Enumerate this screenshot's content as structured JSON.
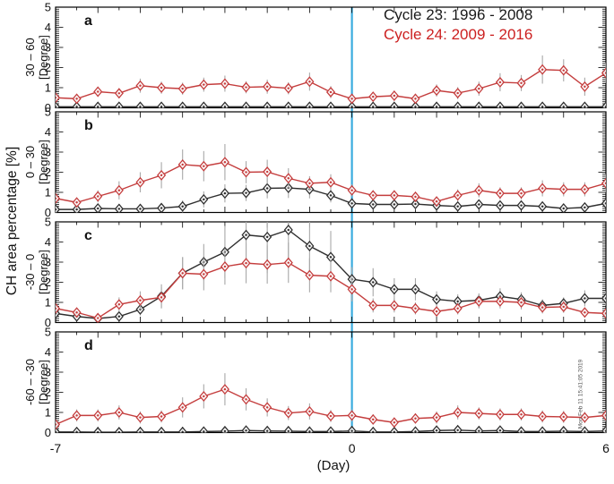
{
  "figure": {
    "legend": {
      "cycle23_label": "Cycle 23: 1996 - 2008",
      "cycle24_label": "Cycle 24: 2009 - 2016"
    },
    "xlabel": "(Day)",
    "ylabel": "CH area percentage [%]",
    "timestamp": "Mon Feb 11 15:41:05 2019",
    "colors": {
      "cycle23": "#2e2e2e",
      "cycle24": "#c43d3d",
      "cycle24_text": "#cc2020",
      "event_line": "#3aacdf",
      "error_bar": "#a8a8a8",
      "axis": "#000000"
    }
  },
  "chart_data": {
    "type": "line",
    "x": [
      -7,
      -6.5,
      -6,
      -5.5,
      -5,
      -4.5,
      -4,
      -3.5,
      -3,
      -2.5,
      -2,
      -1.5,
      -1,
      -0.5,
      0,
      0.5,
      1,
      1.5,
      2,
      2.5,
      3,
      3.5,
      4,
      4.5,
      5,
      5.5,
      6
    ],
    "xlim": [
      -7,
      6
    ],
    "ylim": [
      0,
      5
    ],
    "y_ticks": [
      0,
      1,
      2,
      3,
      4,
      5
    ],
    "x_tick_labels": [
      {
        "value": -7,
        "label": "-7"
      },
      {
        "value": 0,
        "label": "0"
      },
      {
        "value": 6,
        "label": "6"
      }
    ],
    "event_line_x": 0,
    "legend_position": "top-right-inside-panel-a",
    "grid": false,
    "panels": [
      {
        "id": "a",
        "letter": "a",
        "lat_label": "30 – 60",
        "unit_label": "[Degree]",
        "series": [
          {
            "name": "Cycle 23",
            "color_key": "cycle23",
            "values": [
              0.05,
              0.05,
              0.05,
              0.05,
              0.05,
              0.05,
              0.05,
              0.05,
              0.05,
              0.05,
              0.05,
              0.05,
              0.05,
              0.05,
              0.05,
              0.05,
              0.05,
              0.05,
              0.05,
              0.05,
              0.05,
              0.05,
              0.05,
              0.05,
              0.05,
              0.05,
              0.05
            ],
            "err": [
              0,
              0,
              0,
              0,
              0,
              0,
              0,
              0,
              0,
              0,
              0,
              0,
              0,
              0,
              0,
              0,
              0,
              0,
              0,
              0,
              0,
              0,
              0,
              0,
              0,
              0,
              0
            ]
          },
          {
            "name": "Cycle 24",
            "color_key": "cycle24",
            "values": [
              0.5,
              0.45,
              0.8,
              0.72,
              1.1,
              1.0,
              0.95,
              1.15,
              1.2,
              1.02,
              1.05,
              0.97,
              1.3,
              0.78,
              0.45,
              0.55,
              0.6,
              0.45,
              0.86,
              0.73,
              0.95,
              1.27,
              1.23,
              1.9,
              1.86,
              1.05,
              1.73
            ],
            "err": [
              0.25,
              0.2,
              0.25,
              0.25,
              0.35,
              0.3,
              0.3,
              0.35,
              0.4,
              0.3,
              0.35,
              0.3,
              0.45,
              0.3,
              0.2,
              0.2,
              0.25,
              0.2,
              0.3,
              0.3,
              0.35,
              0.45,
              0.4,
              0.7,
              0.55,
              0.45,
              0.5
            ]
          }
        ]
      },
      {
        "id": "b",
        "letter": "b",
        "lat_label": "0 – 30",
        "unit_label": "[Degree]",
        "series": [
          {
            "name": "Cycle 23",
            "color_key": "cycle23",
            "values": [
              0.15,
              0.15,
              0.2,
              0.18,
              0.18,
              0.22,
              0.3,
              0.65,
              0.95,
              0.97,
              1.2,
              1.22,
              1.15,
              0.85,
              0.45,
              0.4,
              0.4,
              0.42,
              0.35,
              0.3,
              0.4,
              0.35,
              0.35,
              0.3,
              0.2,
              0.25,
              0.45
            ],
            "err": [
              0.1,
              0.1,
              0.1,
              0.1,
              0.1,
              0.15,
              0.3,
              0.4,
              0.45,
              0.4,
              0.5,
              0.5,
              0.45,
              0.35,
              0.2,
              0.15,
              0.15,
              0.15,
              0.15,
              0.1,
              0.15,
              0.15,
              0.15,
              0.1,
              0.1,
              0.1,
              0.2
            ]
          },
          {
            "name": "Cycle 24",
            "color_key": "cycle24",
            "values": [
              0.7,
              0.5,
              0.8,
              1.1,
              1.5,
              1.85,
              2.38,
              2.3,
              2.5,
              2.0,
              2.02,
              1.7,
              1.45,
              1.5,
              1.1,
              0.85,
              0.85,
              0.78,
              0.55,
              0.85,
              1.1,
              0.95,
              0.95,
              1.2,
              1.15,
              1.15,
              1.45
            ],
            "err": [
              0.3,
              0.2,
              0.3,
              0.45,
              0.5,
              0.65,
              0.75,
              0.75,
              0.9,
              0.55,
              0.6,
              0.5,
              0.35,
              0.4,
              0.3,
              0.25,
              0.25,
              0.25,
              0.2,
              0.3,
              0.35,
              0.3,
              0.3,
              0.4,
              0.35,
              0.35,
              0.45
            ]
          }
        ]
      },
      {
        "id": "c",
        "letter": "c",
        "lat_label": "-30 – 0",
        "unit_label": "[Degree]",
        "series": [
          {
            "name": "Cycle 23",
            "color_key": "cycle23",
            "values": [
              0.45,
              0.3,
              0.2,
              0.3,
              0.65,
              1.3,
              2.45,
              3.0,
              3.5,
              4.35,
              4.25,
              4.6,
              3.8,
              3.25,
              2.15,
              2.0,
              1.65,
              1.65,
              1.15,
              1.05,
              1.1,
              1.3,
              1.15,
              0.85,
              0.95,
              1.2,
              1.2
            ],
            "err": [
              0.2,
              0.15,
              0.1,
              0.15,
              0.3,
              0.6,
              0.8,
              0.9,
              1.3,
              1.7,
              1.8,
              1.9,
              1.5,
              1.3,
              0.6,
              0.7,
              0.55,
              0.55,
              0.4,
              0.35,
              0.35,
              0.4,
              0.35,
              0.3,
              0.3,
              0.4,
              0.35
            ]
          },
          {
            "name": "Cycle 24",
            "color_key": "cycle24",
            "values": [
              0.7,
              0.5,
              0.22,
              0.9,
              1.1,
              1.25,
              2.45,
              2.4,
              2.78,
              2.95,
              2.88,
              2.97,
              2.35,
              2.3,
              1.65,
              0.85,
              0.85,
              0.7,
              0.55,
              0.7,
              1.05,
              1.05,
              1.0,
              0.75,
              0.78,
              0.5,
              0.45
            ],
            "err": [
              0.25,
              0.2,
              0.1,
              0.35,
              0.45,
              0.5,
              0.8,
              0.8,
              0.9,
              1.0,
              0.95,
              1.0,
              0.85,
              0.8,
              0.6,
              0.35,
              0.35,
              0.3,
              0.25,
              0.3,
              0.35,
              0.35,
              0.35,
              0.3,
              0.3,
              0.25,
              0.2
            ]
          }
        ]
      },
      {
        "id": "d",
        "letter": "d",
        "lat_label": "-60 – -30",
        "unit_label": "[Degree]",
        "series": [
          {
            "name": "Cycle 23",
            "color_key": "cycle23",
            "values": [
              0.03,
              0.03,
              0.02,
              0.02,
              0.03,
              0.03,
              0.03,
              0.05,
              0.07,
              0.1,
              0.08,
              0.07,
              0.05,
              0.05,
              0.08,
              0.03,
              0.03,
              0.05,
              0.1,
              0.12,
              0.08,
              0.1,
              0.05,
              0.05,
              0.07,
              0.05,
              0.08
            ],
            "err": [
              0,
              0,
              0,
              0,
              0,
              0,
              0,
              0,
              0,
              0,
              0,
              0,
              0,
              0,
              0,
              0,
              0,
              0,
              0,
              0,
              0,
              0,
              0,
              0,
              0,
              0,
              0
            ]
          },
          {
            "name": "Cycle 24",
            "color_key": "cycle24",
            "values": [
              0.4,
              0.85,
              0.85,
              1.0,
              0.75,
              0.8,
              1.25,
              1.8,
              2.15,
              1.65,
              1.25,
              0.97,
              1.05,
              0.82,
              0.85,
              0.65,
              0.5,
              0.7,
              0.75,
              1.0,
              0.95,
              0.9,
              0.9,
              0.8,
              0.78,
              0.75,
              0.85
            ],
            "err": [
              0.2,
              0.3,
              0.3,
              0.35,
              0.3,
              0.3,
              0.5,
              0.6,
              0.8,
              0.55,
              0.45,
              0.35,
              0.4,
              0.3,
              0.3,
              0.25,
              0.2,
              0.25,
              0.3,
              0.35,
              0.3,
              0.3,
              0.3,
              0.3,
              0.3,
              0.28,
              0.3
            ]
          }
        ]
      }
    ]
  }
}
